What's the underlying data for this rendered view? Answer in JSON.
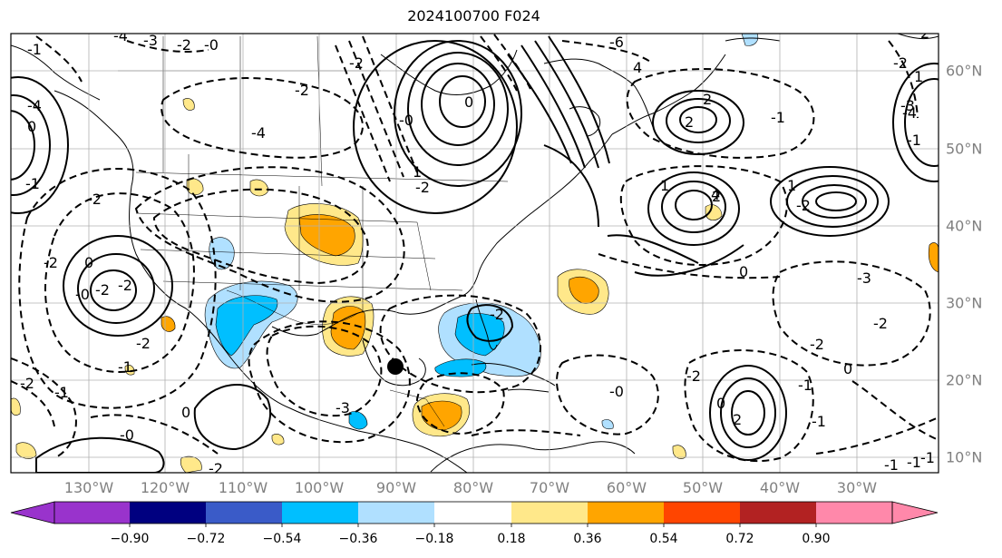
{
  "title": "2024100700 F024",
  "lon_labels": [
    "130°W",
    "120°W",
    "110°W",
    "100°W",
    "90°W",
    "80°W",
    "70°W",
    "60°W",
    "50°W",
    "40°W",
    "30°W"
  ],
  "lat_labels": [
    "60°N",
    "50°N",
    "40°N",
    "30°N",
    "20°N",
    "10°N"
  ],
  "contour_labels": [
    "-1",
    "-4",
    "-3",
    "-2",
    "-0",
    "-6",
    "4",
    "-2",
    "-4",
    "-2",
    "2",
    "2",
    "0",
    "-4",
    "-3",
    "-1",
    "0",
    "-1",
    "1",
    "-2",
    "-2",
    "-2",
    "-2",
    "-2",
    "2",
    "0",
    "-0",
    "4",
    "0",
    "-2",
    "-3",
    "-2",
    "0",
    "-1",
    "-1",
    "-1",
    "-0",
    "-2",
    "2",
    "0",
    "-3",
    "-2",
    "-2",
    "-1",
    "-1",
    "0",
    "-0",
    "-2",
    "-2",
    "-2",
    "-0",
    "1",
    "-1",
    "-1",
    "-2",
    "1",
    "-4",
    "2",
    "1",
    "-1"
  ],
  "colorbar": {
    "ticks": [
      "−0.90",
      "−0.72",
      "−0.54",
      "−0.36",
      "−0.18",
      "0.18",
      "0.36",
      "0.54",
      "0.72",
      "0.90"
    ],
    "colors": [
      "#8a2be2",
      "#000080",
      "#3a5bc8",
      "#00bfff",
      "#b0e0ff",
      "#ffffff",
      "#ffe88a",
      "#ffa500",
      "#ff4500",
      "#b22222",
      "#ff7fb3"
    ],
    "under_color": "#9933cc",
    "over_color": "#ff88aa"
  },
  "fill_colors": {
    "light_blue": "#b0e0ff",
    "blue": "#00bfff",
    "yellow": "#ffe88a",
    "orange": "#ffa500"
  },
  "marker": {
    "lon": -90,
    "lat": 21.5,
    "shape": "filled-circle",
    "color": "#000000"
  }
}
